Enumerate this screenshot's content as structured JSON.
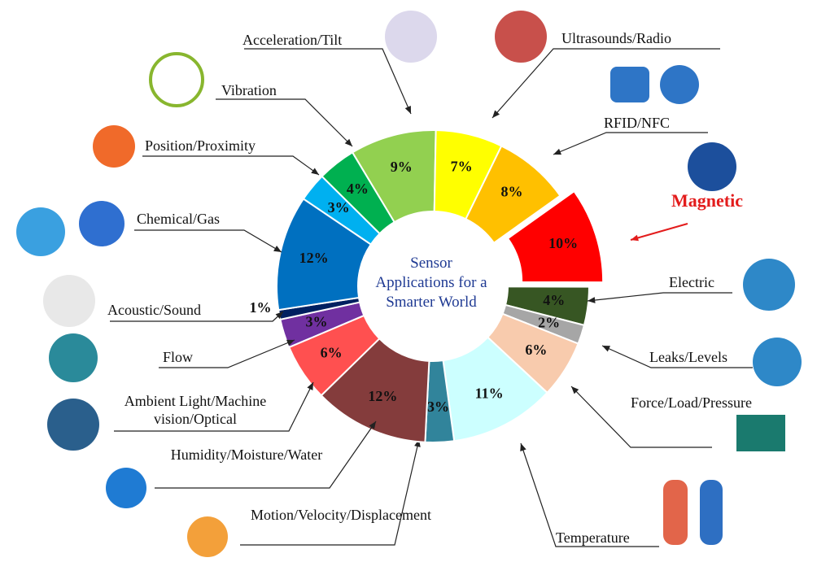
{
  "chart_data": {
    "type": "donut",
    "center_text": [
      "Sensor",
      "Applications for a",
      "Smarter World"
    ],
    "categories": [
      "Acceleration/Tilt",
      "Ultrasounds/Radio",
      "RFID/NFC",
      "Magnetic",
      "Electric",
      "Leaks/Levels",
      "Force/Load/Pressure",
      "Temperature",
      "Motion/Velocity/Displacement",
      "Humidity/Moisture/Water",
      "Ambient Light/Machine vision/Optical",
      "Flow",
      "Acoustic/Sound",
      "Chemical/Gas",
      "Position/Proximity",
      "Vibration"
    ],
    "values": [
      9,
      7,
      8,
      10,
      4,
      2,
      6,
      11,
      3,
      12,
      6,
      3,
      1,
      12,
      3,
      4
    ],
    "value_labels": [
      "9%",
      "7%",
      "8%",
      "10%",
      "4%",
      "2%",
      "6%",
      "11%",
      "3%",
      "12%",
      "6%",
      "3%",
      "1%",
      "12%",
      "3%",
      "4%"
    ],
    "colors": [
      "#92d050",
      "#ffff00",
      "#ffc000",
      "#ff0000",
      "#375623",
      "#a6a6a6",
      "#f8cbad",
      "#ccffff",
      "#31849b",
      "#843c3c",
      "#ff5050",
      "#7030a0",
      "#002060",
      "#0070c0",
      "#00b0f0",
      "#00b050"
    ],
    "highlight": "Magnetic",
    "highlight_color": "#e31c1c"
  }
}
